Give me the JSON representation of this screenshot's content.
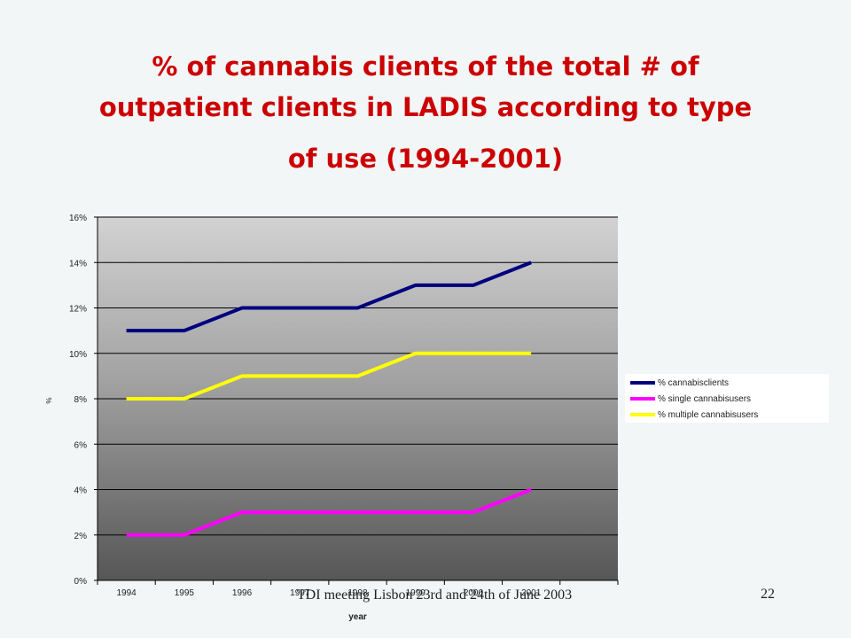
{
  "slide": {
    "title_line1": "% of cannabis clients of the total # of",
    "title_line2": "outpatient clients in LADIS according to type",
    "title_line3": "of use (1994-2001)",
    "footer": "TDI meeting Lisbon 23rd and 24th of June 2003",
    "page_number": "22"
  },
  "chart_data": {
    "type": "line",
    "title": "",
    "xlabel": "year",
    "ylabel": "%",
    "categories": [
      "1994",
      "1995",
      "1996",
      "1997",
      "1998",
      "1999",
      "2000",
      "2001"
    ],
    "ylim": [
      0,
      16
    ],
    "yticks": [
      "0%",
      "2%",
      "4%",
      "6%",
      "8%",
      "10%",
      "12%",
      "14%",
      "16%"
    ],
    "grid": true,
    "legend_position": "right",
    "series": [
      {
        "name": "% cannabisclients",
        "color": "#000080",
        "values": [
          11,
          11,
          12,
          12,
          12,
          13,
          13,
          14
        ]
      },
      {
        "name": "% single cannabisusers",
        "color": "#ff00ff",
        "values": [
          2,
          2,
          3,
          3,
          3,
          3,
          3,
          4
        ]
      },
      {
        "name": "% multiple cannabisusers",
        "color": "#ffff00",
        "values": [
          8,
          8,
          9,
          9,
          9,
          10,
          10,
          10
        ]
      }
    ]
  }
}
